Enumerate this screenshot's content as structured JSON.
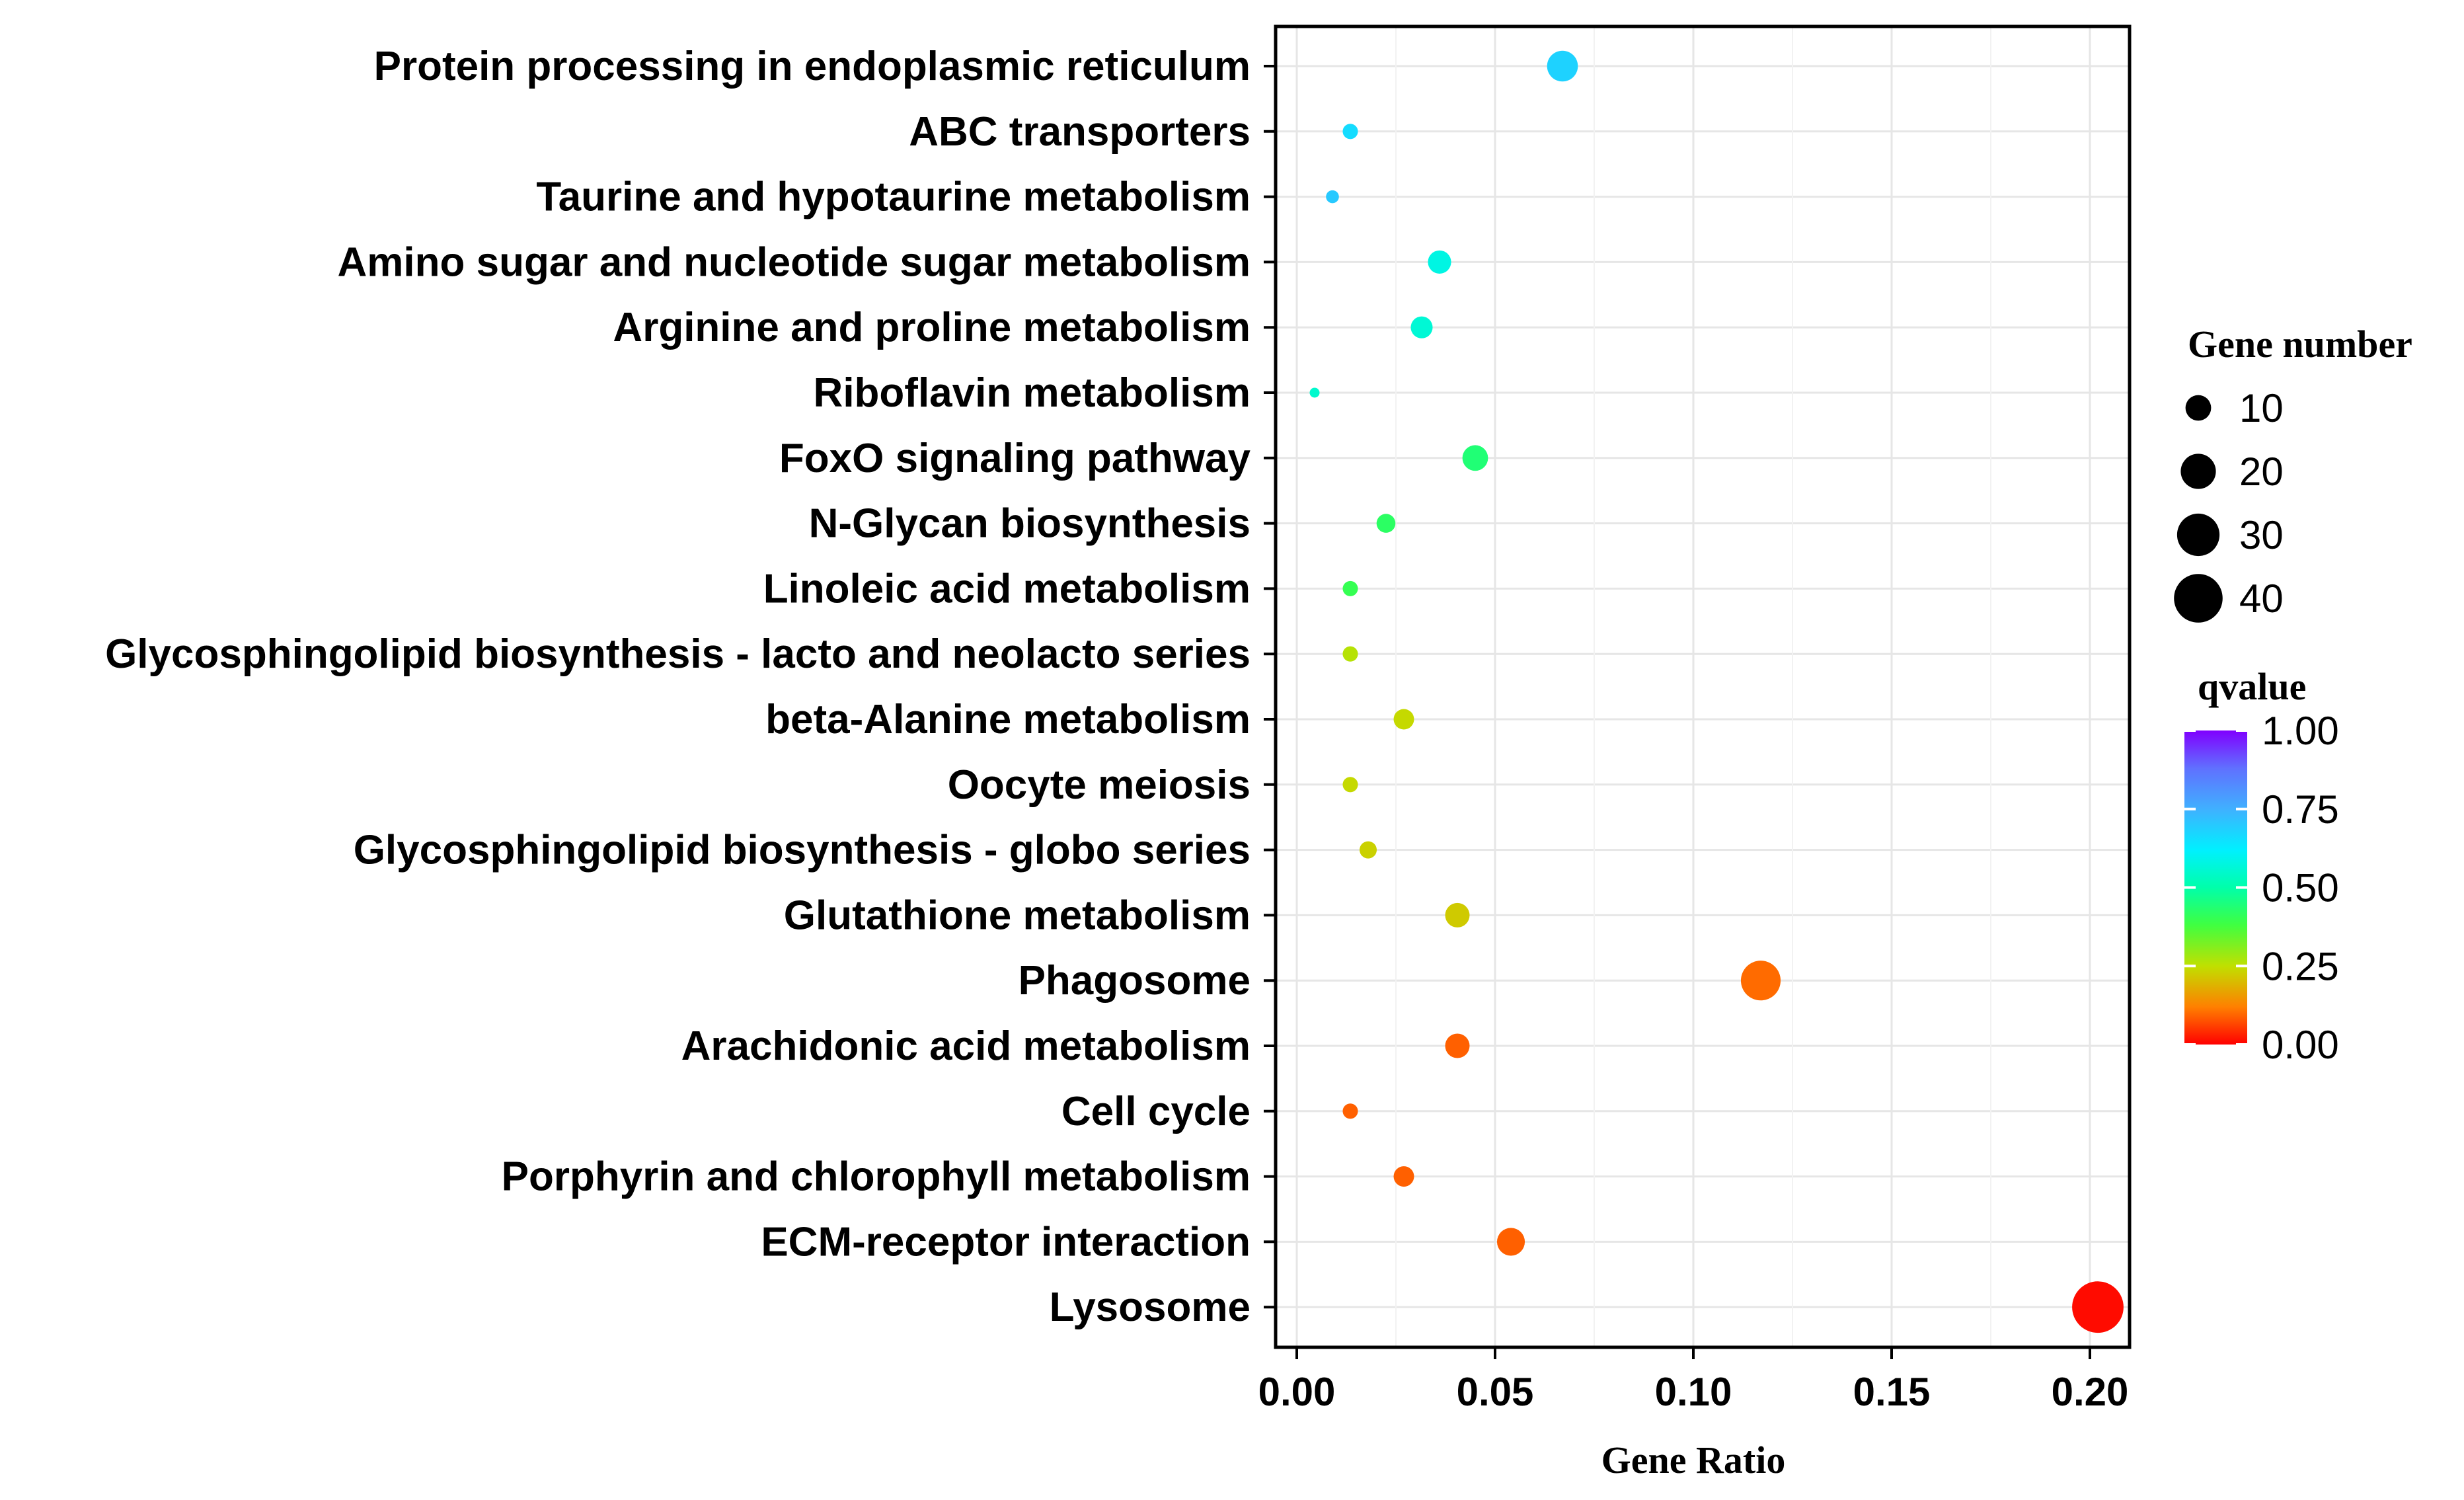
{
  "chart_data": {
    "type": "scatter",
    "title": "",
    "xlabel": "Gene Ratio",
    "ylabel": "",
    "xlim": [
      -0.005,
      0.21
    ],
    "xticks": [
      0.0,
      0.05,
      0.1,
      0.15,
      0.2
    ],
    "xtick_labels": [
      "0.00",
      "0.05",
      "0.10",
      "0.15",
      "0.20"
    ],
    "grid": true,
    "categories": [
      "Protein processing in endoplasmic reticulum",
      "ABC transporters",
      "Taurine and hypotaurine metabolism",
      "Amino sugar and nucleotide sugar metabolism",
      "Arginine and proline metabolism",
      "Riboflavin metabolism",
      "FoxO signaling pathway",
      "N-Glycan biosynthesis",
      "Linoleic acid metabolism",
      "Glycosphingolipid biosynthesis - lacto and neolacto series",
      "beta-Alanine metabolism",
      "Oocyte meiosis",
      "Glycosphingolipid biosynthesis - globo series",
      "Glutathione metabolism",
      "Phagosome",
      "Arachidonic acid metabolism",
      "Cell cycle",
      "Porphyrin and chlorophyll metabolism",
      "ECM-receptor interaction",
      "Lysosome"
    ],
    "gene_ratio": [
      0.067,
      0.0135,
      0.009,
      0.036,
      0.0315,
      0.0045,
      0.045,
      0.0225,
      0.0135,
      0.0135,
      0.027,
      0.0135,
      0.018,
      0.0405,
      0.117,
      0.0405,
      0.0135,
      0.027,
      0.054,
      0.202
    ],
    "gene_number": [
      15,
      3,
      2,
      8,
      7,
      1,
      10,
      5,
      3,
      3,
      6,
      3,
      4,
      9,
      26,
      9,
      3,
      6,
      12,
      45
    ],
    "qvalue": [
      0.68,
      0.66,
      0.7,
      0.58,
      0.56,
      0.55,
      0.44,
      0.42,
      0.4,
      0.26,
      0.24,
      0.24,
      0.23,
      0.22,
      0.1,
      0.09,
      0.09,
      0.09,
      0.09,
      0.01
    ],
    "size_legend": {
      "title": "Gene number",
      "values": [
        10,
        20,
        30,
        40
      ],
      "labels": [
        "10",
        "20",
        "30",
        "40"
      ]
    },
    "color_legend": {
      "title": "qvalue",
      "range": [
        0.0,
        1.0
      ],
      "ticks": [
        1.0,
        0.75,
        0.5,
        0.25,
        0.0
      ],
      "tick_labels": [
        "1.00",
        "0.75",
        "0.50",
        "0.25",
        "0.00"
      ],
      "stops": [
        {
          "value": 0.0,
          "color": "#ff0000"
        },
        {
          "value": 0.12,
          "color": "#ff8000"
        },
        {
          "value": 0.25,
          "color": "#c0e000"
        },
        {
          "value": 0.38,
          "color": "#40ff40"
        },
        {
          "value": 0.5,
          "color": "#00ffaa"
        },
        {
          "value": 0.62,
          "color": "#00f0ff"
        },
        {
          "value": 0.75,
          "color": "#40b0ff"
        },
        {
          "value": 0.88,
          "color": "#6070ff"
        },
        {
          "value": 1.0,
          "color": "#8000ff"
        }
      ]
    }
  }
}
